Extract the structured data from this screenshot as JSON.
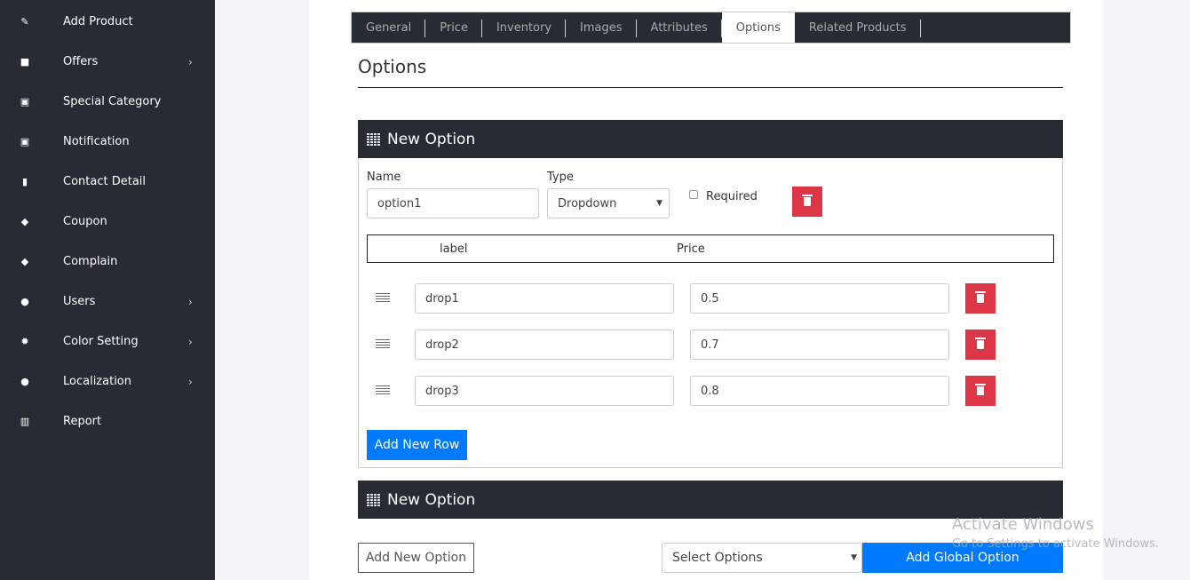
{
  "sidebar": {
    "items": [
      {
        "label": "Add Product",
        "icon": "product-icon",
        "chevron": false
      },
      {
        "label": "Offers",
        "icon": "gift-icon",
        "chevron": true
      },
      {
        "label": "Special Category",
        "icon": "image-icon",
        "chevron": false
      },
      {
        "label": "Notification",
        "icon": "image-icon",
        "chevron": false
      },
      {
        "label": "Contact Detail",
        "icon": "contact-icon",
        "chevron": false
      },
      {
        "label": "Coupon",
        "icon": "tag-icon",
        "chevron": false
      },
      {
        "label": "Complain",
        "icon": "tag-icon",
        "chevron": false
      },
      {
        "label": "Users",
        "icon": "users-icon",
        "chevron": true
      },
      {
        "label": "Color Setting",
        "icon": "gear-icon",
        "chevron": true
      },
      {
        "label": "Localization",
        "icon": "globe-icon",
        "chevron": true
      },
      {
        "label": "Report",
        "icon": "chart-icon",
        "chevron": false
      }
    ]
  },
  "tabs": [
    "General",
    "Price",
    "Inventory",
    "Images",
    "Attributes",
    "Options",
    "Related Products"
  ],
  "active_tab": "Options",
  "section_title": "Options",
  "option1": {
    "header": "New Option",
    "name_label": "Name",
    "name_value": "option1",
    "type_label": "Type",
    "type_value": "Dropdown",
    "required_label": "Required",
    "required": false,
    "col_label": "label",
    "col_price": "Price",
    "rows": [
      {
        "label": "drop1",
        "price": "0.5"
      },
      {
        "label": "drop2",
        "price": "0.7"
      },
      {
        "label": "drop3",
        "price": "0.8"
      }
    ],
    "add_row": "Add New Row"
  },
  "option2": {
    "header": "New Option"
  },
  "footer": {
    "add_option": "Add New Option",
    "select_placeholder": "Select Options",
    "add_global": "Add Global Option"
  },
  "watermark": {
    "title": "Activate Windows",
    "subtitle": "Go to Settings to activate Windows."
  },
  "colors": {
    "sidebar": "#272b33",
    "primary": "#007bff",
    "danger": "#dc3545"
  }
}
